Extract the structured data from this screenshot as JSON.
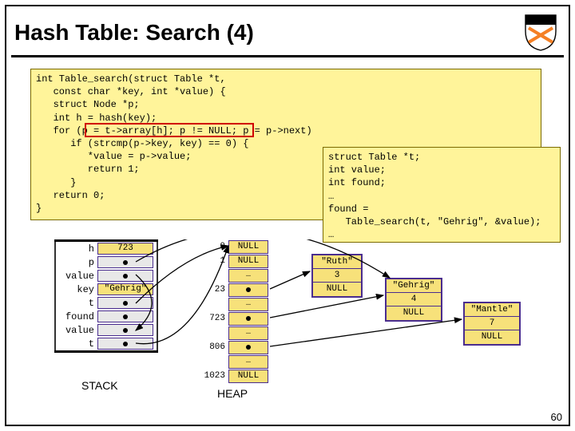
{
  "title": "Hash Table: Search (4)",
  "page_number": "60",
  "colors": {
    "code_bg": "#fff49a",
    "code_border": "#7a6a00",
    "cell_border": "#4a2d8f",
    "cell_bg": "#f7e17a",
    "highlight_border": "#d00000",
    "slide_border": "#000000"
  },
  "main_code": "int Table_search(struct Table *t,\n   const char *key, int *value) {\n   struct Node *p;\n   int h = hash(key);\n   for (p = t->array[h]; p != NULL; p = p->next)\n      if (strcmp(p->key, key) == 0) {\n         *value = p->value;\n         return 1;\n      }\n   return 0;\n}",
  "call_code": "struct Table *t;\nint value;\nint found;\n…\nfound =\n   Table_search(t, \"Gehrig\", &value);\n…",
  "stack": {
    "label": "STACK",
    "rows": [
      {
        "label": "h",
        "type": "val",
        "value": "723"
      },
      {
        "label": "p",
        "type": "dot"
      },
      {
        "label": "value",
        "type": "dot"
      },
      {
        "label": "key",
        "type": "val",
        "value": "\"Gehrig\""
      },
      {
        "label": "t",
        "type": "dot"
      },
      {
        "label": "found",
        "type": "dot"
      },
      {
        "label": "value",
        "type": "dot"
      },
      {
        "label": "t",
        "type": "dot"
      }
    ]
  },
  "heap": {
    "label": "HEAP",
    "rows": [
      {
        "idx": "0",
        "type": "val",
        "value": "NULL"
      },
      {
        "idx": "1",
        "type": "val",
        "value": "NULL"
      },
      {
        "idx": "",
        "type": "dots",
        "value": "…"
      },
      {
        "idx": "23",
        "type": "dot"
      },
      {
        "idx": "",
        "type": "dots",
        "value": "…"
      },
      {
        "idx": "723",
        "type": "dot"
      },
      {
        "idx": "",
        "type": "dots",
        "value": "…"
      },
      {
        "idx": "806",
        "type": "dot"
      },
      {
        "idx": "",
        "type": "dots",
        "value": "…"
      },
      {
        "idx": "1023",
        "type": "val",
        "value": "NULL"
      }
    ]
  },
  "nodes": {
    "ruth": {
      "key": "\"Ruth\"",
      "value": "3",
      "next": "NULL"
    },
    "gehrig": {
      "key": "\"Gehrig\"",
      "value": "4",
      "next": "NULL"
    },
    "mantle": {
      "key": "\"Mantle\"",
      "value": "7",
      "next": "NULL"
    }
  }
}
